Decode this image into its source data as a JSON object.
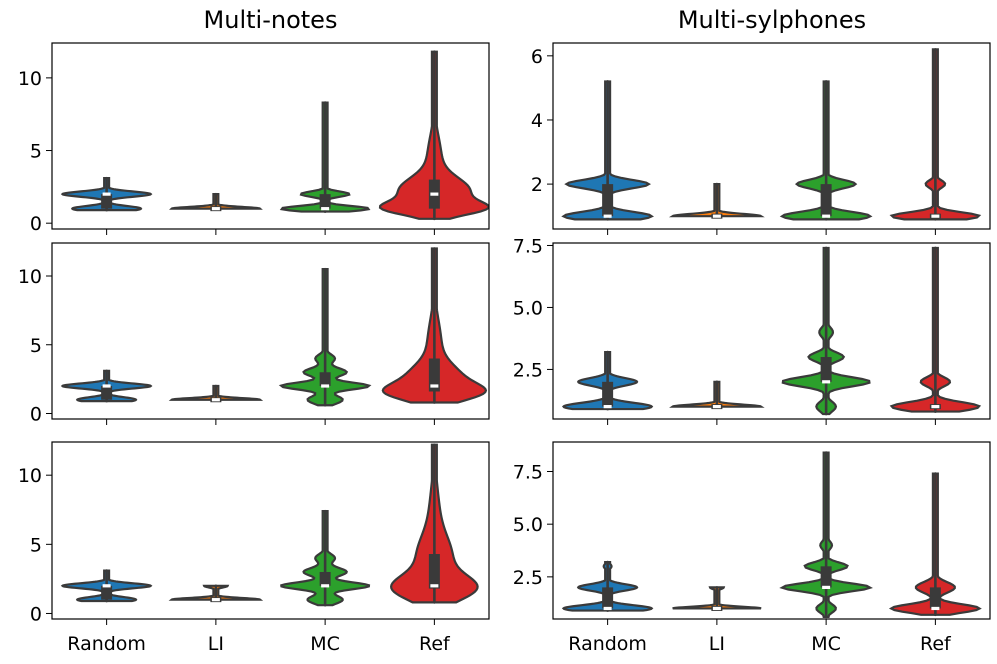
{
  "chart_data": {
    "type": "violin",
    "columns": [
      "Multi-notes",
      "Multi-sylphones"
    ],
    "categories": [
      "Random",
      "LI",
      "MC",
      "Ref"
    ],
    "colors": {
      "Random": "#1f77b4",
      "LI": "#ff7f0e",
      "MC": "#2ca02c",
      "Ref": "#d62728"
    },
    "panels": [
      {
        "id": "p00",
        "column": "Multi-notes",
        "row": 0,
        "ylim": [
          -0.4,
          12.4
        ],
        "yticks": [
          0,
          5,
          10
        ],
        "yticklabels": [
          "0",
          "5",
          "10"
        ],
        "show_x_labels": false,
        "violins": [
          {
            "category": "Random",
            "modes": [
              {
                "y": 1.0,
                "w": 0.35,
                "s": 0.18
              },
              {
                "y": 2.0,
                "w": 0.45,
                "s": 0.18
              }
            ],
            "min": 0.9,
            "max": 3.1,
            "q1": 1.0,
            "median": 2.0,
            "q3": 2.0
          },
          {
            "category": "LI",
            "modes": [
              {
                "y": 1.0,
                "w": 0.45,
                "s": 0.12
              }
            ],
            "min": 1.0,
            "max": 2.0,
            "q1": 1.0,
            "median": 1.0,
            "q3": 1.0
          },
          {
            "category": "MC",
            "modes": [
              {
                "y": 1.0,
                "w": 0.45,
                "s": 0.18
              },
              {
                "y": 2.0,
                "w": 0.25,
                "s": 0.18
              }
            ],
            "min": 0.8,
            "max": 8.3,
            "q1": 1.0,
            "median": 1.0,
            "q3": 2.0
          },
          {
            "category": "Ref",
            "modes": [
              {
                "y": 1.0,
                "w": 0.4,
                "s": 0.45
              },
              {
                "y": 2.2,
                "w": 0.34,
                "s": 0.9
              },
              {
                "y": 4.5,
                "w": 0.07,
                "s": 1.5
              }
            ],
            "min": 0.3,
            "max": 11.8,
            "q1": 1.0,
            "median": 2.0,
            "q3": 3.0
          }
        ]
      },
      {
        "id": "p01",
        "column": "Multi-sylphones",
        "row": 0,
        "ylim": [
          0.6,
          6.4
        ],
        "yticks": [
          2,
          4,
          6
        ],
        "yticklabels": [
          "2",
          "4",
          "6"
        ],
        "show_x_labels": false,
        "violins": [
          {
            "category": "Random",
            "modes": [
              {
                "y": 1.0,
                "w": 0.45,
                "s": 0.13
              },
              {
                "y": 2.0,
                "w": 0.42,
                "s": 0.13
              }
            ],
            "min": 0.9,
            "max": 5.2,
            "q1": 1.0,
            "median": 1.0,
            "q3": 2.0
          },
          {
            "category": "LI",
            "modes": [
              {
                "y": 1.0,
                "w": 0.45,
                "s": 0.07
              }
            ],
            "min": 1.0,
            "max": 2.0,
            "q1": 1.0,
            "median": 1.0,
            "q3": 1.0
          },
          {
            "category": "MC",
            "modes": [
              {
                "y": 1.0,
                "w": 0.45,
                "s": 0.13
              },
              {
                "y": 2.0,
                "w": 0.3,
                "s": 0.13
              }
            ],
            "min": 0.9,
            "max": 5.2,
            "q1": 1.0,
            "median": 1.0,
            "q3": 2.0
          },
          {
            "category": "Ref",
            "modes": [
              {
                "y": 1.0,
                "w": 0.45,
                "s": 0.12
              },
              {
                "y": 2.0,
                "w": 0.1,
                "s": 0.12
              }
            ],
            "min": 0.9,
            "max": 6.2,
            "q1": 1.0,
            "median": 1.0,
            "q3": 1.0
          }
        ]
      },
      {
        "id": "p10",
        "column": "Multi-notes",
        "row": 1,
        "ylim": [
          -0.4,
          12.4
        ],
        "yticks": [
          0,
          5,
          10
        ],
        "yticklabels": [
          "0",
          "5",
          "10"
        ],
        "show_x_labels": false,
        "violins": [
          {
            "category": "Random",
            "modes": [
              {
                "y": 1.0,
                "w": 0.3,
                "s": 0.18
              },
              {
                "y": 2.0,
                "w": 0.45,
                "s": 0.18
              }
            ],
            "min": 0.9,
            "max": 3.1,
            "q1": 1.0,
            "median": 2.0,
            "q3": 2.0
          },
          {
            "category": "LI",
            "modes": [
              {
                "y": 1.0,
                "w": 0.45,
                "s": 0.12
              }
            ],
            "min": 1.0,
            "max": 2.0,
            "q1": 1.0,
            "median": 1.0,
            "q3": 1.0
          },
          {
            "category": "MC",
            "modes": [
              {
                "y": 1.0,
                "w": 0.18,
                "s": 0.3
              },
              {
                "y": 2.0,
                "w": 0.45,
                "s": 0.25
              },
              {
                "y": 3.0,
                "w": 0.22,
                "s": 0.3
              },
              {
                "y": 4.0,
                "w": 0.1,
                "s": 0.3
              }
            ],
            "min": 0.6,
            "max": 10.5,
            "q1": 2.0,
            "median": 2.0,
            "q3": 3.0
          },
          {
            "category": "Ref",
            "modes": [
              {
                "y": 1.5,
                "w": 0.35,
                "s": 0.6
              },
              {
                "y": 2.5,
                "w": 0.25,
                "s": 1.0
              },
              {
                "y": 5.0,
                "w": 0.07,
                "s": 1.8
              }
            ],
            "min": 0.8,
            "max": 12.0,
            "q1": 1.6,
            "median": 2.0,
            "q3": 4.0
          }
        ]
      },
      {
        "id": "p11",
        "column": "Multi-sylphones",
        "row": 1,
        "ylim": [
          0.5,
          7.6
        ],
        "yticks": [
          2.5,
          5.0,
          7.5
        ],
        "yticklabels": [
          "2.5",
          "5.0",
          "7.5"
        ],
        "show_x_labels": false,
        "violins": [
          {
            "category": "Random",
            "modes": [
              {
                "y": 1.0,
                "w": 0.45,
                "s": 0.15
              },
              {
                "y": 2.0,
                "w": 0.3,
                "s": 0.15
              }
            ],
            "min": 0.9,
            "max": 3.2,
            "q1": 1.0,
            "median": 1.0,
            "q3": 2.0
          },
          {
            "category": "LI",
            "modes": [
              {
                "y": 1.0,
                "w": 0.45,
                "s": 0.08
              }
            ],
            "min": 1.0,
            "max": 2.0,
            "q1": 1.0,
            "median": 1.0,
            "q3": 1.0
          },
          {
            "category": "MC",
            "modes": [
              {
                "y": 1.0,
                "w": 0.1,
                "s": 0.2
              },
              {
                "y": 2.0,
                "w": 0.45,
                "s": 0.18
              },
              {
                "y": 3.0,
                "w": 0.18,
                "s": 0.18
              },
              {
                "y": 4.0,
                "w": 0.07,
                "s": 0.2
              }
            ],
            "min": 0.7,
            "max": 7.4,
            "q1": 2.0,
            "median": 2.0,
            "q3": 3.0
          },
          {
            "category": "Ref",
            "modes": [
              {
                "y": 1.0,
                "w": 0.45,
                "s": 0.18
              },
              {
                "y": 2.0,
                "w": 0.15,
                "s": 0.18
              }
            ],
            "min": 0.8,
            "max": 7.4,
            "q1": 1.0,
            "median": 1.0,
            "q3": 1.0
          }
        ]
      },
      {
        "id": "p20",
        "column": "Multi-notes",
        "row": 2,
        "ylim": [
          -0.4,
          12.4
        ],
        "yticks": [
          0,
          5,
          10
        ],
        "yticklabels": [
          "0",
          "5",
          "10"
        ],
        "show_x_labels": true,
        "violins": [
          {
            "category": "Random",
            "modes": [
              {
                "y": 1.0,
                "w": 0.3,
                "s": 0.18
              },
              {
                "y": 2.0,
                "w": 0.45,
                "s": 0.18
              }
            ],
            "min": 0.9,
            "max": 3.1,
            "q1": 1.0,
            "median": 2.0,
            "q3": 2.0
          },
          {
            "category": "LI",
            "modes": [
              {
                "y": 1.0,
                "w": 0.45,
                "s": 0.12
              },
              {
                "y": 2.0,
                "w": 0.12,
                "s": 0.12
              }
            ],
            "min": 1.0,
            "max": 2.0,
            "q1": 1.0,
            "median": 1.0,
            "q3": 1.0
          },
          {
            "category": "MC",
            "modes": [
              {
                "y": 1.0,
                "w": 0.18,
                "s": 0.3
              },
              {
                "y": 2.0,
                "w": 0.45,
                "s": 0.25
              },
              {
                "y": 3.0,
                "w": 0.22,
                "s": 0.3
              },
              {
                "y": 4.0,
                "w": 0.1,
                "s": 0.3
              }
            ],
            "min": 0.6,
            "max": 7.4,
            "q1": 2.0,
            "median": 2.0,
            "q3": 3.0
          },
          {
            "category": "Ref",
            "modes": [
              {
                "y": 1.8,
                "w": 0.38,
                "s": 0.9
              },
              {
                "y": 4.0,
                "w": 0.16,
                "s": 1.5
              },
              {
                "y": 7.0,
                "w": 0.05,
                "s": 2.2
              }
            ],
            "min": 0.8,
            "max": 12.2,
            "q1": 1.8,
            "median": 2.0,
            "q3": 4.3
          }
        ]
      },
      {
        "id": "p21",
        "column": "Multi-sylphones",
        "row": 2,
        "ylim": [
          0.5,
          8.9
        ],
        "yticks": [
          2.5,
          5.0,
          7.5
        ],
        "yticklabels": [
          "2.5",
          "5.0",
          "7.5"
        ],
        "show_x_labels": true,
        "violins": [
          {
            "category": "Random",
            "modes": [
              {
                "y": 1.0,
                "w": 0.45,
                "s": 0.15
              },
              {
                "y": 2.0,
                "w": 0.3,
                "s": 0.15
              },
              {
                "y": 3.0,
                "w": 0.04,
                "s": 0.12
              }
            ],
            "min": 0.9,
            "max": 3.2,
            "q1": 1.0,
            "median": 1.0,
            "q3": 2.0
          },
          {
            "category": "LI",
            "modes": [
              {
                "y": 1.0,
                "w": 0.45,
                "s": 0.08
              },
              {
                "y": 2.0,
                "w": 0.07,
                "s": 0.08
              }
            ],
            "min": 1.0,
            "max": 2.0,
            "q1": 1.0,
            "median": 1.0,
            "q3": 1.0
          },
          {
            "category": "MC",
            "modes": [
              {
                "y": 1.0,
                "w": 0.1,
                "s": 0.2
              },
              {
                "y": 2.0,
                "w": 0.45,
                "s": 0.18
              },
              {
                "y": 3.0,
                "w": 0.22,
                "s": 0.18
              },
              {
                "y": 4.0,
                "w": 0.06,
                "s": 0.2
              }
            ],
            "min": 0.6,
            "max": 8.4,
            "q1": 2.0,
            "median": 2.0,
            "q3": 3.0
          },
          {
            "category": "Ref",
            "modes": [
              {
                "y": 1.0,
                "w": 0.45,
                "s": 0.2
              },
              {
                "y": 2.0,
                "w": 0.2,
                "s": 0.25
              }
            ],
            "min": 0.7,
            "max": 7.4,
            "q1": 1.0,
            "median": 1.0,
            "q3": 2.0
          }
        ]
      }
    ]
  }
}
